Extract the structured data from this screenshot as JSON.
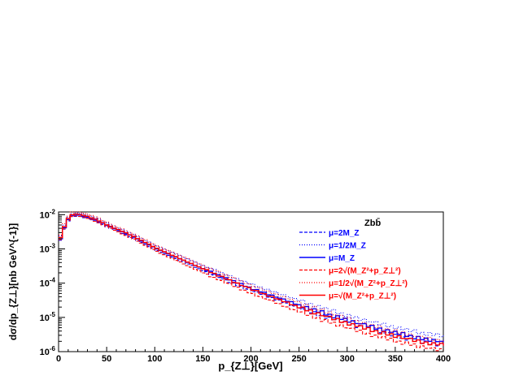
{
  "chart_data": {
    "type": "line",
    "title": "Zbb̄",
    "xlabel": "p_{Z⊥}[GeV]",
    "ylabel": "dσ/dp_{Z⊥}[nb GeV^{-1}]",
    "xlim": [
      0,
      400
    ],
    "ylim": [
      1e-06,
      0.012
    ],
    "yscale": "log",
    "grid": false,
    "legend_position": "top-right",
    "x_ticks": [
      0,
      50,
      100,
      150,
      200,
      250,
      300,
      350,
      400
    ],
    "y_ticks": [
      {
        "value": 1e-06,
        "base": "10",
        "exp": "-6"
      },
      {
        "value": 1e-05,
        "base": "10",
        "exp": "-5"
      },
      {
        "value": 0.0001,
        "base": "10",
        "exp": "-4"
      },
      {
        "value": 0.001,
        "base": "10",
        "exp": "-3"
      },
      {
        "value": 0.01,
        "base": "10",
        "exp": "-2"
      }
    ],
    "x": [
      5,
      10,
      15,
      20,
      30,
      40,
      50,
      75,
      100,
      125,
      150,
      175,
      200,
      225,
      250,
      275,
      300,
      325,
      350,
      375,
      395
    ],
    "series": [
      {
        "name": "μ=2M_Z",
        "color": "#0000ff",
        "dash": "4,2",
        "values": [
          0.0045,
          0.0085,
          0.009,
          0.0088,
          0.0075,
          0.0058,
          0.0042,
          0.0021,
          0.0009,
          0.00045,
          0.00022,
          0.00011,
          5.8e-05,
          3.3e-05,
          1.8e-05,
          1.05e-05,
          6.5e-06,
          4.2e-06,
          2.8e-06,
          1.9e-06,
          1.6e-06
        ]
      },
      {
        "name": "μ=1/2M_Z",
        "color": "#0000ff",
        "dash": "1,2",
        "values": [
          0.006,
          0.0105,
          0.0112,
          0.011,
          0.0093,
          0.0073,
          0.0053,
          0.0027,
          0.0012,
          0.00062,
          0.00031,
          0.000165,
          9e-05,
          5.2e-05,
          3e-05,
          1.8e-05,
          1.1e-05,
          7.2e-06,
          5e-06,
          3.5e-06,
          3e-06
        ]
      },
      {
        "name": "μ=M_Z",
        "color": "#0000ff",
        "dash": "",
        "values": [
          0.005,
          0.0092,
          0.0098,
          0.0096,
          0.0081,
          0.0063,
          0.0046,
          0.0023,
          0.001,
          0.0005,
          0.00025,
          0.00013,
          6.8e-05,
          3.9e-05,
          2.2e-05,
          1.3e-05,
          8e-06,
          5.2e-06,
          3.5e-06,
          2.4e-06,
          2e-06
        ]
      },
      {
        "name": "μ=2√(M_Z²+p_Z⊥²)",
        "color": "#ff0000",
        "dash": "4,2",
        "values": [
          0.0047,
          0.0087,
          0.0093,
          0.009,
          0.0076,
          0.0058,
          0.0042,
          0.002,
          0.00085,
          0.0004,
          0.00019,
          9.5e-05,
          4.8e-05,
          2.6e-05,
          1.4e-05,
          8e-06,
          4.8e-06,
          3e-06,
          2e-06,
          1.4e-06,
          1.1e-06
        ]
      },
      {
        "name": "μ=1/2√(M_Z²+p_Z⊥²)",
        "color": "#ff0000",
        "dash": "1,2",
        "values": [
          0.0065,
          0.0115,
          0.0122,
          0.0119,
          0.01,
          0.0078,
          0.0056,
          0.0028,
          0.00125,
          0.00063,
          0.00031,
          0.00016,
          8.2e-05,
          4.6e-05,
          2.6e-05,
          1.5e-05,
          9e-06,
          5.6e-06,
          3.8e-06,
          2.6e-06,
          2.1e-06
        ]
      },
      {
        "name": "μ=√(M_Z²+p_Z⊥²)",
        "color": "#ff0000",
        "dash": "",
        "values": [
          0.0054,
          0.0098,
          0.0105,
          0.0102,
          0.0086,
          0.0066,
          0.0048,
          0.0024,
          0.00104,
          0.00051,
          0.00025,
          0.000125,
          6.4e-05,
          3.5e-05,
          1.9e-05,
          1.1e-05,
          6.6e-06,
          4.1e-06,
          2.8e-06,
          1.9e-06,
          1.6e-06
        ]
      }
    ]
  }
}
